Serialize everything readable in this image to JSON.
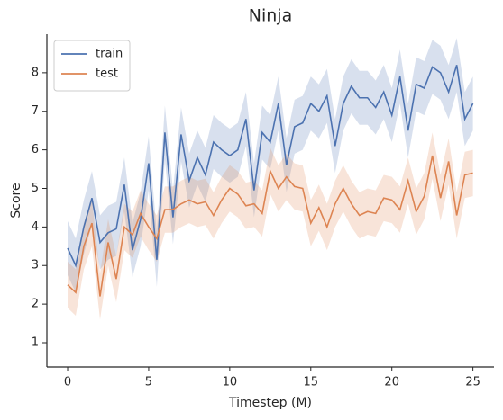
{
  "chart_data": {
    "type": "line",
    "title": "Ninja",
    "xlabel": "Timestep (M)",
    "ylabel": "Score",
    "x": [
      0,
      0.5,
      1,
      1.5,
      2,
      2.5,
      3,
      3.5,
      4,
      4.5,
      5,
      5.5,
      6,
      6.5,
      7,
      7.5,
      8,
      8.5,
      9,
      9.5,
      10,
      10.5,
      11,
      11.5,
      12,
      12.5,
      13,
      13.5,
      14,
      14.5,
      15,
      15.5,
      16,
      16.5,
      17,
      17.5,
      18,
      18.5,
      19,
      19.5,
      20,
      20.5,
      21,
      21.5,
      22,
      22.5,
      23,
      23.5,
      24,
      24.5,
      25
    ],
    "series": [
      {
        "name": "train",
        "color": "#4c72b0",
        "values": [
          3.45,
          3.0,
          4.0,
          4.75,
          3.6,
          3.85,
          3.95,
          5.1,
          3.4,
          4.2,
          5.65,
          3.15,
          6.45,
          4.25,
          6.4,
          5.2,
          5.8,
          5.35,
          6.2,
          6.0,
          5.85,
          6.0,
          6.8,
          4.95,
          6.45,
          6.2,
          7.2,
          5.6,
          6.6,
          6.7,
          7.2,
          7.0,
          7.4,
          6.1,
          7.2,
          7.65,
          7.35,
          7.35,
          7.1,
          7.5,
          6.9,
          7.9,
          6.5,
          7.7,
          7.6,
          8.15,
          8.0,
          7.5,
          8.2,
          6.8,
          7.2
        ],
        "lower": [
          2.75,
          2.3,
          3.3,
          4.05,
          2.9,
          3.15,
          3.25,
          4.4,
          2.7,
          3.5,
          4.95,
          2.45,
          5.75,
          3.55,
          5.7,
          4.5,
          5.1,
          4.65,
          5.5,
          5.3,
          5.15,
          5.3,
          6.1,
          4.25,
          5.75,
          5.5,
          6.5,
          4.9,
          5.9,
          6.0,
          6.5,
          6.3,
          6.7,
          5.4,
          6.5,
          6.95,
          6.65,
          6.65,
          6.4,
          6.8,
          6.2,
          7.2,
          5.8,
          7.0,
          6.9,
          7.45,
          7.3,
          6.8,
          7.5,
          6.1,
          6.5
        ],
        "upper": [
          4.15,
          3.7,
          4.7,
          5.45,
          4.3,
          4.55,
          4.65,
          5.8,
          4.1,
          4.9,
          6.35,
          3.85,
          7.15,
          4.95,
          7.1,
          5.9,
          6.5,
          6.05,
          6.9,
          6.7,
          6.55,
          6.7,
          7.5,
          5.65,
          7.15,
          6.9,
          7.9,
          6.3,
          7.3,
          7.4,
          7.9,
          7.7,
          8.1,
          6.8,
          7.9,
          8.35,
          8.05,
          8.05,
          7.8,
          8.2,
          7.6,
          8.6,
          7.2,
          8.4,
          8.3,
          8.85,
          8.7,
          8.2,
          8.9,
          7.5,
          7.9
        ]
      },
      {
        "name": "test",
        "color": "#dd8452",
        "values": [
          2.5,
          2.3,
          3.5,
          4.1,
          2.2,
          3.6,
          2.65,
          4.0,
          3.8,
          4.35,
          4.0,
          3.7,
          4.45,
          4.45,
          4.6,
          4.7,
          4.6,
          4.65,
          4.3,
          4.7,
          5.0,
          4.85,
          4.55,
          4.6,
          4.35,
          5.45,
          5.0,
          5.3,
          5.05,
          5.0,
          4.1,
          4.5,
          4.0,
          4.6,
          5.0,
          4.6,
          4.3,
          4.4,
          4.35,
          4.75,
          4.7,
          4.45,
          5.2,
          4.4,
          4.8,
          5.85,
          4.75,
          5.7,
          4.3,
          5.35,
          5.4
        ],
        "lower": [
          1.9,
          1.7,
          2.9,
          3.5,
          1.6,
          3.0,
          2.05,
          3.4,
          3.2,
          3.75,
          3.4,
          3.1,
          3.85,
          3.85,
          4.0,
          4.1,
          4.0,
          4.05,
          3.7,
          4.1,
          4.4,
          4.25,
          3.95,
          4.0,
          3.75,
          4.85,
          4.4,
          4.7,
          4.45,
          4.4,
          3.5,
          3.9,
          3.4,
          4.0,
          4.4,
          4.0,
          3.7,
          3.8,
          3.75,
          4.15,
          4.1,
          3.85,
          4.6,
          3.8,
          4.2,
          5.25,
          4.15,
          5.1,
          3.7,
          4.75,
          4.8
        ],
        "upper": [
          3.1,
          2.9,
          4.1,
          4.7,
          2.8,
          4.2,
          3.25,
          4.6,
          4.4,
          4.95,
          4.6,
          4.3,
          5.05,
          5.05,
          5.2,
          5.3,
          5.2,
          5.25,
          4.9,
          5.3,
          5.6,
          5.45,
          5.15,
          5.2,
          4.95,
          6.05,
          5.6,
          5.9,
          5.65,
          5.6,
          4.7,
          5.1,
          4.6,
          5.2,
          5.6,
          5.2,
          4.9,
          5.0,
          4.95,
          5.35,
          5.3,
          5.05,
          5.8,
          5.0,
          5.4,
          6.45,
          5.35,
          6.3,
          4.9,
          5.95,
          6.0
        ]
      }
    ],
    "xlim": [
      -1.28,
      26.3
    ],
    "ylim": [
      0.37,
      9.0
    ],
    "xticks": [
      0,
      5,
      10,
      15,
      20,
      25
    ],
    "yticks": [
      1,
      2,
      3,
      4,
      5,
      6,
      7,
      8
    ],
    "legend": "upper left"
  }
}
